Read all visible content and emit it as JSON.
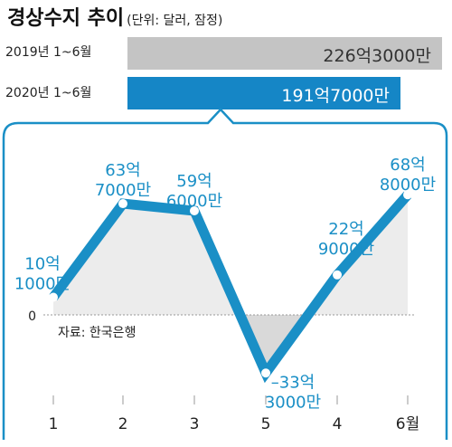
{
  "header": {
    "title": "경상수지 추이",
    "unit": "(단위: 달러, 잠정)"
  },
  "summary_bars": [
    {
      "label": "2019년 1~6월",
      "value_text": "226억3000만",
      "value": 22630000000,
      "color": "#c4c4c4",
      "text_color": "#333333"
    },
    {
      "label": "2020년 1~6월",
      "value_text": "191억7000만",
      "value": 19170000000,
      "color": "#1586c6",
      "text_color": "#ffffff"
    }
  ],
  "source": "자료: 한국은행",
  "zero_label": "0",
  "colors": {
    "line": "#1a8fc6",
    "panel_border": "#1a8fc6",
    "positive_fill": "#ececec",
    "negative_fill": "#d9d9d9"
  },
  "chart_data": {
    "type": "line",
    "categories": [
      "1",
      "2",
      "3",
      "5",
      "4",
      "6월"
    ],
    "values": [
      1010000000,
      6370000000,
      5960000000,
      -3330000000,
      2290000000,
      6880000000
    ],
    "value_labels": [
      [
        "10억",
        "1000만"
      ],
      [
        "63억",
        "7000만"
      ],
      [
        "59억",
        "6000만"
      ],
      [
        "–33억",
        "3000만"
      ],
      [
        "22억",
        "9000만"
      ],
      [
        "68억",
        "8000만"
      ]
    ],
    "xlabel": "",
    "ylabel": "",
    "baseline": 0,
    "grid": false,
    "legend": "none"
  }
}
